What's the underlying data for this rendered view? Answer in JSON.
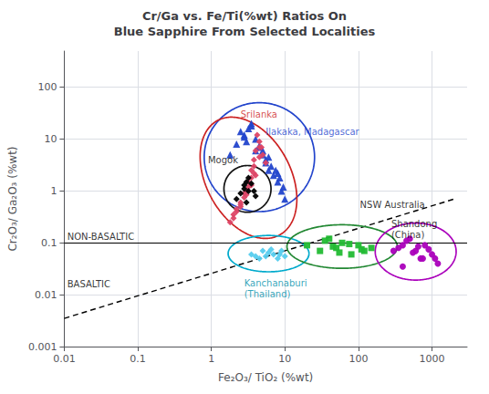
{
  "chart_data": {
    "type": "scatter",
    "title": "Cr/Ga vs. Fe/Ti(%wt) Ratios On\nBlue Sapphire From Selected Localities",
    "xlabel": "Fe₂O₃/ TiO₂ (%wt)",
    "ylabel": "Cr₂O₃/ Ga₂O₃ (%wt)",
    "log": true,
    "grid": true,
    "xlim": [
      0.01,
      3000
    ],
    "ylim": [
      0.001,
      500
    ],
    "xticks": [
      0.01,
      0.1,
      1,
      10,
      100,
      1000
    ],
    "yticks": [
      0.001,
      0.01,
      0.1,
      1,
      10,
      100
    ],
    "series": [
      {
        "name": "Ilakaka, Madagascar",
        "color": "#2244cc",
        "marker": "triangle",
        "x": [
          1.8,
          2.2,
          2.8,
          3.5,
          4.0,
          4.5,
          5.0,
          5.5,
          6.0,
          7.0,
          8.0,
          9.0,
          10.0,
          2.5,
          3.0,
          4.0,
          5.5,
          7.5,
          9.5,
          3.5,
          5.0,
          6.5,
          8.5,
          2.8,
          4.5,
          6.0,
          8.0,
          3.2
        ],
        "values": [
          5.0,
          8.0,
          12.0,
          18.0,
          10.0,
          7.0,
          5.0,
          3.5,
          2.5,
          2.0,
          1.5,
          1.0,
          0.7,
          14.0,
          9.0,
          6.0,
          4.0,
          2.5,
          1.2,
          20.0,
          6.0,
          3.0,
          1.8,
          11.0,
          7.5,
          4.5,
          2.2,
          16.0
        ],
        "ellipse": {
          "cx": 4.5,
          "cy": 4.5,
          "rx": 0.75,
          "ry": 1.05,
          "angle": 0,
          "color": "#2244cc"
        }
      },
      {
        "name": "Srilanka",
        "color": "#dd4466",
        "marker": "diamond",
        "x": [
          1.8,
          2.2,
          2.5,
          3.0,
          3.2,
          3.5,
          3.8,
          4.0,
          4.5,
          4.8,
          5.0,
          5.5,
          2.0,
          2.5,
          3.0,
          3.5,
          4.0,
          4.5,
          2.2,
          2.8,
          3.2,
          3.8,
          2.5,
          3.0,
          3.8,
          4.5,
          2.0,
          3.5,
          4.2,
          2.8
        ],
        "values": [
          0.25,
          0.4,
          0.6,
          1.0,
          1.5,
          2.5,
          4.0,
          6.0,
          9.0,
          7.0,
          5.0,
          3.5,
          0.35,
          0.55,
          0.85,
          1.3,
          2.0,
          4.5,
          0.45,
          0.75,
          1.2,
          2.2,
          0.5,
          1.0,
          3.0,
          7.0,
          0.3,
          1.8,
          12.0,
          0.9
        ],
        "ellipse": {
          "cx": 3.2,
          "cy": 1.8,
          "rx": 0.6,
          "ry": 1.2,
          "angle": 15,
          "color": "#cc2222"
        }
      },
      {
        "name": "Mogok",
        "color": "#000000",
        "marker": "diamond",
        "x": [
          2.2,
          2.5,
          2.8,
          3.0,
          3.2,
          3.5,
          3.8,
          4.0,
          2.8,
          3.2,
          3.0
        ],
        "values": [
          0.7,
          0.9,
          1.1,
          1.5,
          1.8,
          1.4,
          1.0,
          0.8,
          1.3,
          1.0,
          0.6
        ],
        "ellipse": {
          "cx": 3.1,
          "cy": 1.1,
          "rx": 0.32,
          "ry": 0.45,
          "angle": 0,
          "color": "#111111"
        }
      },
      {
        "name": "Kanchanaburi\n(Thailand)",
        "color": "#55ccee",
        "marker": "diamond",
        "x": [
          3.5,
          4.5,
          5.0,
          5.5,
          6.0,
          7.0,
          8.0,
          9.0,
          10.0,
          6.5,
          4.0,
          8.5
        ],
        "values": [
          0.06,
          0.05,
          0.07,
          0.055,
          0.065,
          0.06,
          0.05,
          0.07,
          0.055,
          0.075,
          0.055,
          0.06
        ],
        "ellipse": {
          "cx": 6.0,
          "cy": 0.062,
          "rx": 0.55,
          "ry": 0.35,
          "angle": 0,
          "color": "#00aacc"
        }
      },
      {
        "name": "NSW Australia",
        "color": "#22bb33",
        "marker": "square",
        "x": [
          20,
          30,
          40,
          50,
          60,
          80,
          100,
          120,
          150,
          35,
          55,
          75,
          110,
          45
        ],
        "values": [
          0.09,
          0.07,
          0.12,
          0.08,
          0.1,
          0.06,
          0.09,
          0.07,
          0.08,
          0.11,
          0.065,
          0.095,
          0.075,
          0.085
        ],
        "ellipse": {
          "cx": 60,
          "cy": 0.085,
          "rx": 0.75,
          "ry": 0.42,
          "angle": 0,
          "color": "#228833"
        }
      },
      {
        "name": "Shandong\n(China)",
        "color": "#aa00bb",
        "marker": "circle",
        "x": [
          300,
          400,
          500,
          600,
          700,
          800,
          1000,
          1200,
          350,
          450,
          550,
          650,
          750,
          900,
          1100,
          400
        ],
        "values": [
          0.07,
          0.09,
          0.12,
          0.07,
          0.05,
          0.09,
          0.06,
          0.04,
          0.08,
          0.11,
          0.065,
          0.085,
          0.05,
          0.075,
          0.05,
          0.035
        ],
        "ellipse": {
          "cx": 600,
          "cy": 0.068,
          "rx": 0.55,
          "ry": 0.55,
          "angle": 0,
          "color": "#aa00bb"
        }
      }
    ],
    "hlines": [
      {
        "y": 0.1,
        "color": "#000000"
      }
    ],
    "reference_lines": [
      {
        "x": [
          0.01,
          2000
        ],
        "y": [
          0.0035,
          0.7
        ],
        "color": "#000000",
        "line_style": "dashed"
      }
    ],
    "annotations": [
      {
        "text": "Srilanka",
        "x": 2.5,
        "y": 30,
        "color": "#cc2222"
      },
      {
        "text": "Ilakaka, Madagascar",
        "x": 5.5,
        "y": 14,
        "color": "#2244cc"
      },
      {
        "text": "Mogok",
        "x": 0.9,
        "y": 4.0,
        "color": "#000000"
      },
      {
        "text": "Kanchanaburi\n(Thailand)",
        "x": 2.8,
        "y": 0.013,
        "color": "#008faa"
      },
      {
        "text": "NSW Australia",
        "x": 105,
        "y": 0.55,
        "color": "#000000"
      },
      {
        "text": "Shandong\n(China)",
        "x": 280,
        "y": 0.18,
        "color": "#000000"
      },
      {
        "text": "NON-BASALTIC",
        "x": 0.011,
        "y": 0.13,
        "color": "#000000"
      },
      {
        "text": "BASALTIC",
        "x": 0.011,
        "y": 0.016,
        "color": "#000000"
      }
    ]
  }
}
